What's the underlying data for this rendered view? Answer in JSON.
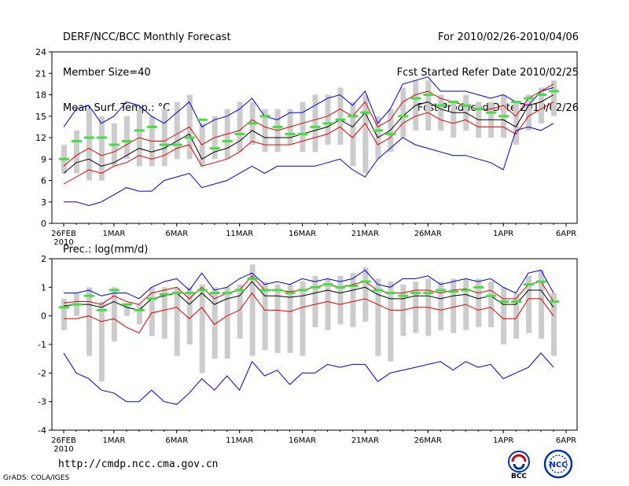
{
  "header": {
    "title": "DERF/NCC/BCC Monthly Forecast",
    "member_size": "Member Size=40",
    "variable": "Mean Surf. Temp.: °C",
    "period": "For 2010/02/26-2010/04/06",
    "fcst_started": "Fcst Started Refer Date 2010/02/25",
    "fcst_produced": "Fcst Produced Date 2010/02/26"
  },
  "footer": {
    "url": "http://cmdp.ncc.cma.gov.cn",
    "grads": "GrADS: COLA/IGES",
    "logo_left_text": "BCC",
    "logo_right_text": "NCC"
  },
  "chart_data": [
    {
      "type": "line",
      "title": "Mean Surf. Temp.: °C",
      "x": [
        1,
        2,
        3,
        4,
        5,
        6,
        7,
        8,
        9,
        10,
        11,
        12,
        13,
        14,
        15,
        16,
        17,
        18,
        19,
        20,
        21,
        22,
        23,
        24,
        25,
        26,
        27,
        28,
        29,
        30,
        31,
        32,
        33,
        34,
        35,
        36,
        37,
        38,
        39,
        40
      ],
      "x_tick_labels": [
        {
          "day": 1,
          "label": "26FEB",
          "sub": "2010"
        },
        {
          "day": 5,
          "label": "1MAR"
        },
        {
          "day": 10,
          "label": "6MAR"
        },
        {
          "day": 15,
          "label": "11MAR"
        },
        {
          "day": 20,
          "label": "16MAR"
        },
        {
          "day": 25,
          "label": "21MAR"
        },
        {
          "day": 30,
          "label": "26MAR"
        },
        {
          "day": 36,
          "label": "1APR"
        },
        {
          "day": 41,
          "label": "6APR"
        }
      ],
      "ylim": [
        0,
        24
      ],
      "yticks": [
        0,
        3,
        6,
        9,
        12,
        15,
        18,
        21,
        24
      ],
      "series": [
        {
          "name": "max",
          "color": "#0000cc",
          "values": [
            13.5,
            16.0,
            16.5,
            14.0,
            15.0,
            17.0,
            16.5,
            15.0,
            14.0,
            15.5,
            17.0,
            13.5,
            14.5,
            15.0,
            16.0,
            17.5,
            15.0,
            14.5,
            15.5,
            15.5,
            16.5,
            17.5,
            18.0,
            16.5,
            18.5,
            14.0,
            16.0,
            19.5,
            20.0,
            20.5,
            18.5,
            18.5,
            18.5,
            18.0,
            17.5,
            18.0,
            17.0,
            16.5,
            18.5,
            19.0
          ]
        },
        {
          "name": "upper",
          "color": "#dd0000",
          "values": [
            8.0,
            9.5,
            10.5,
            9.5,
            10.0,
            11.0,
            12.0,
            11.5,
            11.5,
            12.5,
            13.5,
            11.0,
            12.0,
            12.5,
            13.0,
            14.5,
            13.5,
            13.0,
            13.5,
            14.0,
            14.5,
            15.0,
            16.0,
            15.0,
            17.0,
            13.5,
            14.5,
            17.0,
            18.0,
            18.5,
            17.5,
            17.0,
            16.5,
            16.0,
            16.0,
            16.5,
            15.0,
            17.5,
            18.5,
            19.5
          ]
        },
        {
          "name": "mean",
          "color": "#000000",
          "values": [
            7.0,
            8.5,
            9.0,
            8.0,
            8.5,
            9.5,
            10.5,
            10.0,
            10.5,
            11.5,
            12.5,
            9.0,
            10.0,
            10.5,
            11.5,
            13.0,
            12.0,
            12.0,
            12.0,
            12.5,
            13.0,
            13.5,
            14.5,
            13.5,
            15.5,
            12.0,
            13.0,
            15.0,
            16.5,
            17.0,
            16.0,
            15.5,
            15.5,
            14.5,
            14.5,
            14.5,
            13.5,
            16.5,
            17.0,
            18.0
          ]
        },
        {
          "name": "lower",
          "color": "#dd0000",
          "values": [
            5.5,
            6.5,
            7.5,
            7.0,
            8.0,
            8.5,
            9.5,
            9.0,
            9.5,
            10.5,
            11.0,
            8.0,
            8.5,
            9.0,
            10.0,
            11.5,
            11.0,
            11.0,
            11.0,
            11.5,
            12.0,
            12.5,
            13.5,
            12.0,
            14.0,
            11.0,
            12.0,
            14.0,
            15.0,
            15.5,
            14.5,
            14.0,
            14.5,
            13.5,
            13.5,
            13.5,
            12.5,
            15.0,
            16.0,
            17.0
          ]
        },
        {
          "name": "min",
          "color": "#0000cc",
          "values": [
            3.0,
            3.0,
            2.5,
            3.0,
            4.0,
            5.0,
            4.5,
            4.5,
            6.0,
            6.5,
            7.0,
            5.0,
            5.5,
            6.0,
            7.0,
            8.0,
            7.0,
            8.0,
            8.0,
            8.0,
            8.0,
            8.5,
            9.0,
            7.5,
            6.5,
            9.0,
            10.5,
            12.0,
            11.0,
            10.5,
            10.0,
            9.5,
            9.5,
            9.0,
            8.5,
            7.5,
            13.0,
            13.5,
            13.0,
            14.0
          ]
        }
      ],
      "gray_bars": {
        "color": "#cccccc",
        "low": [
          7,
          7,
          6,
          6,
          8,
          9,
          8,
          8,
          8,
          9,
          9,
          8,
          9,
          9,
          10,
          11,
          10,
          10,
          11,
          10,
          10,
          11,
          11,
          8,
          7,
          9,
          10,
          12,
          13,
          13,
          13,
          12,
          13,
          12,
          12,
          12,
          11,
          13,
          14,
          15
        ],
        "high": [
          11,
          13,
          16,
          15,
          14,
          15,
          16,
          15,
          16,
          17,
          18,
          14,
          15,
          16,
          17,
          17,
          16,
          16,
          16,
          17,
          18,
          18,
          19,
          17,
          18,
          15,
          16,
          19,
          20,
          20,
          18,
          17,
          18,
          17,
          17,
          18,
          17,
          18,
          19,
          20
        ]
      },
      "green_marks": {
        "color": "#44dd44",
        "values": [
          9.0,
          11.5,
          12.0,
          12.0,
          11.0,
          11.5,
          13.0,
          13.5,
          11.0,
          11.0,
          12.0,
          14.5,
          10.5,
          11.5,
          12.5,
          14.0,
          15.0,
          13.5,
          12.5,
          12.5,
          13.5,
          14.0,
          14.5,
          15.0,
          15.5,
          13.0,
          12.5,
          15.0,
          17.5,
          18.0,
          16.5,
          17.0,
          16.5,
          16.0,
          15.5,
          15.0,
          17.0,
          17.5,
          18.0,
          18.5
        ]
      }
    },
    {
      "type": "line",
      "title": "Prec.: log(mm/d)",
      "x": [
        1,
        2,
        3,
        4,
        5,
        6,
        7,
        8,
        9,
        10,
        11,
        12,
        13,
        14,
        15,
        16,
        17,
        18,
        19,
        20,
        21,
        22,
        23,
        24,
        25,
        26,
        27,
        28,
        29,
        30,
        31,
        32,
        33,
        34,
        35,
        36,
        37,
        38,
        39,
        40
      ],
      "x_tick_labels": [
        {
          "day": 1,
          "label": "26FEB",
          "sub": "2010"
        },
        {
          "day": 5,
          "label": "1MAR"
        },
        {
          "day": 10,
          "label": "6MAR"
        },
        {
          "day": 15,
          "label": "11MAR"
        },
        {
          "day": 20,
          "label": "16MAR"
        },
        {
          "day": 25,
          "label": "21MAR"
        },
        {
          "day": 30,
          "label": "26MAR"
        },
        {
          "day": 36,
          "label": "1APR"
        },
        {
          "day": 41,
          "label": "6APR"
        }
      ],
      "ylim": [
        -4,
        2
      ],
      "yticks": [
        -4,
        -3,
        -2,
        -1,
        0,
        1,
        2
      ],
      "series": [
        {
          "name": "max",
          "color": "#0000cc",
          "values": [
            0.8,
            0.8,
            0.9,
            0.7,
            0.8,
            0.8,
            0.6,
            1.0,
            1.2,
            1.3,
            0.9,
            1.5,
            0.9,
            1.0,
            1.3,
            1.5,
            1.1,
            1.2,
            1.1,
            1.3,
            1.2,
            1.3,
            1.2,
            1.3,
            1.6,
            1.1,
            1.0,
            1.3,
            1.3,
            1.4,
            1.1,
            1.2,
            1.3,
            1.2,
            1.3,
            1.0,
            0.8,
            1.5,
            1.6,
            0.8
          ]
        },
        {
          "name": "upper",
          "color": "#dd0000",
          "values": [
            0.45,
            0.5,
            0.5,
            0.4,
            0.7,
            0.5,
            0.4,
            0.8,
            0.9,
            1.0,
            0.6,
            1.0,
            0.6,
            0.8,
            0.9,
            1.4,
            0.9,
            0.9,
            0.85,
            0.9,
            1.0,
            1.1,
            1.0,
            1.1,
            1.2,
            0.9,
            0.8,
            0.8,
            0.9,
            0.9,
            0.8,
            0.9,
            0.95,
            0.8,
            0.9,
            0.6,
            0.6,
            1.1,
            1.2,
            0.5
          ]
        },
        {
          "name": "mean",
          "color": "#000000",
          "values": [
            0.35,
            0.4,
            0.4,
            0.3,
            0.5,
            0.3,
            0.2,
            0.6,
            0.7,
            0.8,
            0.4,
            0.8,
            0.4,
            0.6,
            0.7,
            1.2,
            0.7,
            0.7,
            0.65,
            0.7,
            0.8,
            0.9,
            0.8,
            0.9,
            1.0,
            0.75,
            0.6,
            0.6,
            0.7,
            0.7,
            0.6,
            0.7,
            0.75,
            0.6,
            0.7,
            0.4,
            0.4,
            0.9,
            0.9,
            0.3
          ]
        },
        {
          "name": "lower",
          "color": "#dd0000",
          "values": [
            -0.1,
            -0.1,
            0.0,
            -0.2,
            -0.1,
            -0.4,
            -0.6,
            0.1,
            0.2,
            0.3,
            -0.1,
            0.3,
            -0.3,
            0.0,
            0.2,
            0.8,
            0.2,
            0.2,
            0.15,
            0.3,
            0.4,
            0.5,
            0.4,
            0.5,
            0.6,
            0.4,
            0.2,
            0.2,
            0.3,
            0.3,
            0.2,
            0.3,
            0.4,
            0.2,
            0.3,
            -0.1,
            -0.1,
            0.6,
            0.6,
            0.0
          ]
        },
        {
          "name": "min",
          "color": "#0000cc",
          "values": [
            -1.3,
            -2.0,
            -2.2,
            -2.6,
            -2.7,
            -3.0,
            -3.0,
            -2.6,
            -3.0,
            -3.1,
            -2.7,
            -2.2,
            -2.6,
            -2.1,
            -2.6,
            -1.6,
            -2.1,
            -1.9,
            -2.4,
            -2.0,
            -2.0,
            -1.7,
            -1.8,
            -1.7,
            -1.7,
            -2.3,
            -2.0,
            -1.9,
            -1.8,
            -1.7,
            -1.6,
            -1.9,
            -1.6,
            -1.8,
            -1.7,
            -2.2,
            -2.0,
            -1.8,
            -1.3,
            -1.8
          ]
        },
        {
          "name": "green",
          "color": "#44dd44",
          "values": [
            0.3,
            0.4,
            0.7,
            0.2,
            0.9,
            0.4,
            0.2,
            0.6,
            0.75,
            0.8,
            0.8,
            0.9,
            0.8,
            0.8,
            0.9,
            1.3,
            0.9,
            0.9,
            0.8,
            0.9,
            1.0,
            1.1,
            1.0,
            1.05,
            1.2,
            0.9,
            0.8,
            0.7,
            0.8,
            0.8,
            0.9,
            0.85,
            0.9,
            1.0,
            0.7,
            0.5,
            0.5,
            1.1,
            1.2,
            0.5
          ]
        }
      ],
      "gray_bars": {
        "color": "#cccccc",
        "low": [
          -0.5,
          0.0,
          -1.4,
          -2.3,
          -0.9,
          0.0,
          -0.3,
          -0.7,
          -0.8,
          -1.4,
          -1.0,
          -2.0,
          -1.5,
          -1.5,
          -0.8,
          -1.4,
          -1.2,
          -1.3,
          -1.3,
          -1.4,
          -0.4,
          -0.5,
          -0.3,
          -0.4,
          -0.2,
          -1.4,
          -1.6,
          -0.7,
          -0.6,
          -0.7,
          -0.5,
          -0.6,
          -0.5,
          -0.4,
          -0.4,
          -1.0,
          -0.8,
          -0.6,
          -0.8,
          -1.4
        ],
        "high": [
          0.6,
          0.8,
          1.0,
          0.5,
          1.0,
          0.4,
          0.4,
          1.0,
          1.0,
          1.0,
          1.0,
          1.1,
          1.0,
          1.0,
          1.1,
          1.8,
          1.2,
          1.1,
          1.1,
          1.2,
          1.4,
          1.3,
          1.4,
          1.5,
          1.7,
          1.3,
          1.2,
          1.1,
          1.2,
          1.3,
          1.2,
          1.3,
          1.3,
          1.3,
          1.2,
          1.0,
          0.8,
          1.4,
          1.6,
          0.8
        ]
      }
    }
  ]
}
